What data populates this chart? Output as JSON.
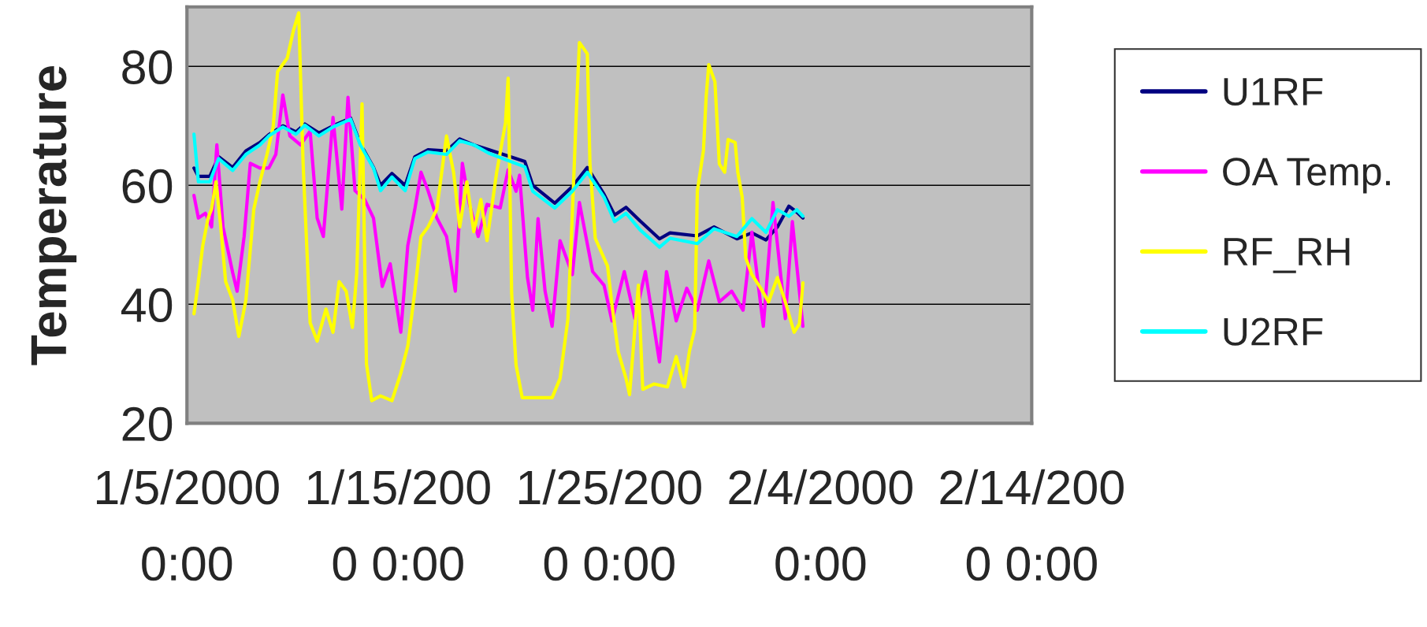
{
  "chart_data": {
    "type": "line",
    "ylabel": "Temperature",
    "xlim": [
      "2000-01-05",
      "2000-02-14"
    ],
    "xticks": [
      {
        "value": "2000-01-05",
        "label": "1/5/2000\n0:00"
      },
      {
        "value": "2000-01-15",
        "label": "1/15/200\n0 0:00"
      },
      {
        "value": "2000-01-25",
        "label": "1/25/200\n0 0:00"
      },
      {
        "value": "2000-02-04",
        "label": "2/4/2000\n0:00"
      },
      {
        "value": "2000-02-14",
        "label": "2/14/200\n0 0:00"
      }
    ],
    "ylim": [
      20,
      90
    ],
    "yticks": [
      20,
      40,
      60,
      80
    ],
    "grid": "y",
    "legend": "right",
    "marker": "none",
    "line_style": "solid",
    "series": [
      {
        "name": "U1RF",
        "color": "#000080",
        "x": [
          "2000-01-05T08:00",
          "2000-01-05T13:00",
          "2000-01-06T02:00",
          "2000-01-06T12:00",
          "2000-01-07T04:00",
          "2000-01-07T19:00",
          "2000-01-08T11:00",
          "2000-01-08T21:00",
          "2000-01-09T13:00",
          "2000-01-10T04:00",
          "2000-01-10T14:00",
          "2000-01-11T06:00",
          "2000-01-11T22:00",
          "2000-01-12T18:00",
          "2000-01-13T05:00",
          "2000-01-13T20:00",
          "2000-01-14T04:00",
          "2000-01-14T17:00",
          "2000-01-15T08:00",
          "2000-01-15T19:00",
          "2000-01-16T10:00",
          "2000-01-17T07:00",
          "2000-01-17T22:00",
          "2000-01-18T14:00",
          "2000-01-19T07:00",
          "2000-01-21T00:00",
          "2000-01-21T09:00",
          "2000-01-22T10:00",
          "2000-01-23T06:00",
          "2000-01-23T23:00",
          "2000-01-24T18:00",
          "2000-01-25T06:00",
          "2000-01-25T19:00",
          "2000-01-26T11:00",
          "2000-01-27T09:00",
          "2000-01-27T21:00",
          "2000-01-29T04:00",
          "2000-01-29T23:00",
          "2000-01-31T01:00",
          "2000-01-31T18:00",
          "2000-02-01T10:00",
          "2000-02-01T23:00",
          "2000-02-02T12:00",
          "2000-02-02T21:00",
          "2000-02-03T04:00"
        ],
        "values": [
          62.9,
          61.5,
          61.5,
          64.8,
          63,
          65.8,
          67.2,
          68.5,
          70,
          69,
          70.3,
          68.8,
          70,
          71.3,
          67,
          63,
          60,
          62,
          60,
          64.8,
          66,
          65.8,
          67.8,
          66.8,
          66,
          64,
          60,
          57,
          59.8,
          63,
          58.5,
          55,
          56.3,
          54,
          51,
          52,
          51.5,
          53,
          51,
          52,
          50.8,
          53,
          56.5,
          55.5,
          54.5
        ]
      },
      {
        "name": "OA Temp.",
        "color": "#ff00ff",
        "x": [
          "2000-01-05T08:00",
          "2000-01-05T13:00",
          "2000-01-05T21:00",
          "2000-01-06T04:00",
          "2000-01-06T10:00",
          "2000-01-06T17:00",
          "2000-01-07T04:00",
          "2000-01-07T09:00",
          "2000-01-07T17:00",
          "2000-01-08T00:00",
          "2000-01-08T11:00",
          "2000-01-08T21:00",
          "2000-01-09T05:00",
          "2000-01-09T13:00",
          "2000-01-09T21:00",
          "2000-01-10T09:00",
          "2000-01-10T20:00",
          "2000-01-11T04:00",
          "2000-01-11T11:00",
          "2000-01-11T22:00",
          "2000-01-12T08:00",
          "2000-01-12T15:00",
          "2000-01-12T23:00",
          "2000-01-13T10:00",
          "2000-01-13T20:00",
          "2000-01-14T06:00",
          "2000-01-14T15:00",
          "2000-01-15T03:00",
          "2000-01-15T11:00",
          "2000-01-15T19:00",
          "2000-01-16T02:00",
          "2000-01-16T10:00",
          "2000-01-16T20:00",
          "2000-01-17T07:00",
          "2000-01-17T17:00",
          "2000-01-18T01:00",
          "2000-01-18T09:00",
          "2000-01-18T19:00",
          "2000-01-19T05:00",
          "2000-01-19T20:00",
          "2000-01-20T05:00",
          "2000-01-20T14:00",
          "2000-01-20T18:00",
          "2000-01-21T03:00",
          "2000-01-21T09:00",
          "2000-01-21T15:00",
          "2000-01-21T23:00",
          "2000-01-22T07:00",
          "2000-01-22T16:00",
          "2000-01-23T06:00",
          "2000-01-23T14:00",
          "2000-01-24T05:00",
          "2000-01-24T18:00",
          "2000-01-25T03:00",
          "2000-01-25T17:00",
          "2000-01-26T05:00",
          "2000-01-26T17:00",
          "2000-01-27T09:00",
          "2000-01-27T17:00",
          "2000-01-28T04:00",
          "2000-01-28T16:00",
          "2000-01-29T04:00",
          "2000-01-29T17:00",
          "2000-01-30T05:00",
          "2000-01-30T19:00",
          "2000-01-31T08:00",
          "2000-01-31T18:00",
          "2000-02-01T07:00",
          "2000-02-01T18:00",
          "2000-02-02T08:00",
          "2000-02-02T16:00",
          "2000-02-03T04:00"
        ],
        "values": [
          58.3,
          54.5,
          55.3,
          53.0,
          66.8,
          53.0,
          45.3,
          42.2,
          51.4,
          63.7,
          62.9,
          62.9,
          65.2,
          75.2,
          68.3,
          66.8,
          69.1,
          54.5,
          51.4,
          71.4,
          56.0,
          74.8,
          59.1,
          57.6,
          54.5,
          43.0,
          46.8,
          35.3,
          49.9,
          56.0,
          62.2,
          59.1,
          54.5,
          51.4,
          42.2,
          63.7,
          56.8,
          51.4,
          56.8,
          56.2,
          62.6,
          59.0,
          61.7,
          44.5,
          39.0,
          54.4,
          42.2,
          36.3,
          50.7,
          45.0,
          57.1,
          45.5,
          43.2,
          37.2,
          45.5,
          37.6,
          45.5,
          30.3,
          45.5,
          37.2,
          42.7,
          39.0,
          47.3,
          40.4,
          42.2,
          39.0,
          52.1,
          36.3,
          57.1,
          37.6,
          53.9,
          36.3
        ]
      },
      {
        "name": "RF_RH",
        "color": "#ffff00",
        "x": [
          "2000-01-05T08:00",
          "2000-01-05T13:00",
          "2000-01-05T18:00",
          "2000-01-06T00:00",
          "2000-01-06T04:00",
          "2000-01-06T09:00",
          "2000-01-06T14:00",
          "2000-01-06T20:00",
          "2000-01-07T04:00",
          "2000-01-07T11:00",
          "2000-01-07T19:00",
          "2000-01-08T04:00",
          "2000-01-08T11:00",
          "2000-01-08T19:00",
          "2000-01-09T02:00",
          "2000-01-09T07:00",
          "2000-01-09T18:00",
          "2000-01-10T01:00",
          "2000-01-10T07:00",
          "2000-01-10T12:00",
          "2000-01-10T20:00",
          "2000-01-11T04:00",
          "2000-01-11T14:00",
          "2000-01-11T22:00",
          "2000-01-12T05:00",
          "2000-01-12T13:00",
          "2000-01-12T20:00",
          "2000-01-13T01:00",
          "2000-01-13T07:00",
          "2000-01-13T12:00",
          "2000-01-13T18:00",
          "2000-01-14T04:00",
          "2000-01-14T17:00",
          "2000-01-15T03:00",
          "2000-01-15T11:00",
          "2000-01-15T19:00",
          "2000-01-16T02:00",
          "2000-01-16T10:00",
          "2000-01-16T20:00",
          "2000-01-17T07:00",
          "2000-01-17T15:00",
          "2000-01-17T22:00",
          "2000-01-18T06:00",
          "2000-01-18T14:00",
          "2000-01-18T22:00",
          "2000-01-19T05:00",
          "2000-01-19T16:00",
          "2000-01-20T02:00",
          "2000-01-20T05:00",
          "2000-01-20T09:00",
          "2000-01-20T14:00",
          "2000-01-20T21:00",
          "2000-01-22T07:00",
          "2000-01-22T16:00",
          "2000-01-23T01:00",
          "2000-01-23T06:00",
          "2000-01-23T11:00",
          "2000-01-23T14:00",
          "2000-01-23T23:00",
          "2000-01-24T02:00",
          "2000-01-24T08:00",
          "2000-01-24T22:00",
          "2000-01-25T03:00",
          "2000-01-25T10:00",
          "2000-01-25T19:00",
          "2000-01-25T23:00",
          "2000-01-26T09:00",
          "2000-01-26T14:00",
          "2000-01-27T03:00",
          "2000-01-27T18:00",
          "2000-01-28T04:00",
          "2000-01-28T13:00",
          "2000-01-28T19:00",
          "2000-01-29T01:00",
          "2000-01-29T04:00",
          "2000-01-29T11:00",
          "2000-01-29T14:00",
          "2000-01-29T17:00",
          "2000-01-30T00:00",
          "2000-01-30T05:00",
          "2000-01-30T11:00",
          "2000-01-30T15:00",
          "2000-01-30T23:00",
          "2000-01-31T02:00",
          "2000-01-31T07:00",
          "2000-01-31T11:00",
          "2000-01-31T18:00",
          "2000-02-01T04:00",
          "2000-02-01T13:00",
          "2000-02-01T23:00",
          "2000-02-02T08:00",
          "2000-02-02T18:00",
          "2000-02-03T00:00",
          "2000-02-03T04:00"
        ],
        "values": [
          38.4,
          43.8,
          49.9,
          54.5,
          56.0,
          60.6,
          53.7,
          43.8,
          40.7,
          34.6,
          40.7,
          56.0,
          60.6,
          65.2,
          69.8,
          79.1,
          81.4,
          86.0,
          89.0,
          63.7,
          36.9,
          33.8,
          39.2,
          35.3,
          43.8,
          42.2,
          36.1,
          45.3,
          73.7,
          30.0,
          23.8,
          24.6,
          23.8,
          28.4,
          33.0,
          42.2,
          51.4,
          53.0,
          56.0,
          68.3,
          62.2,
          53.0,
          60.6,
          52.2,
          57.6,
          50.7,
          62.2,
          70.5,
          78.0,
          41.8,
          29.8,
          24.3,
          24.3,
          27.5,
          37.6,
          55.3,
          74.1,
          84.0,
          82.1,
          63.6,
          51.1,
          46.4,
          39.9,
          32.1,
          27.5,
          24.8,
          43.2,
          25.7,
          26.6,
          26.1,
          31.2,
          26.1,
          32.1,
          35.8,
          59.0,
          65.9,
          74.8,
          80.3,
          77.4,
          63.6,
          62.2,
          67.7,
          67.2,
          62.2,
          58.0,
          47.8,
          45.0,
          42.7,
          40.4,
          44.5,
          40.4,
          35.3,
          36.7,
          43.6
        ]
      },
      {
        "name": "U2RF",
        "color": "#00ffff",
        "x": [
          "2000-01-05T08:00",
          "2000-01-05T13:00",
          "2000-01-06T02:00",
          "2000-01-06T12:00",
          "2000-01-07T04:00",
          "2000-01-07T19:00",
          "2000-01-08T11:00",
          "2000-01-08T21:00",
          "2000-01-09T13:00",
          "2000-01-10T04:00",
          "2000-01-10T14:00",
          "2000-01-11T06:00",
          "2000-01-11T22:00",
          "2000-01-12T18:00",
          "2000-01-13T05:00",
          "2000-01-13T20:00",
          "2000-01-14T04:00",
          "2000-01-14T17:00",
          "2000-01-15T08:00",
          "2000-01-15T19:00",
          "2000-01-16T10:00",
          "2000-01-17T07:00",
          "2000-01-17T22:00",
          "2000-01-18T14:00",
          "2000-01-19T07:00",
          "2000-01-21T00:00",
          "2000-01-21T09:00",
          "2000-01-22T10:00",
          "2000-01-23T06:00",
          "2000-01-23T23:00",
          "2000-01-24T18:00",
          "2000-01-25T06:00",
          "2000-01-25T19:00",
          "2000-01-26T11:00",
          "2000-01-27T09:00",
          "2000-01-27T21:00",
          "2000-01-29T04:00",
          "2000-01-29T23:00",
          "2000-01-31T01:00",
          "2000-01-31T18:00",
          "2000-02-01T10:00",
          "2000-02-01T23:00",
          "2000-02-02T12:00",
          "2000-02-02T21:00",
          "2000-02-03T04:00"
        ],
        "values": [
          68.6,
          60.6,
          60.6,
          64.5,
          62.5,
          65.2,
          66.8,
          68.3,
          69.8,
          68.6,
          70.1,
          68.3,
          69.8,
          71.1,
          66.8,
          62.9,
          59.1,
          61.4,
          59.1,
          64.5,
          65.6,
          65.2,
          67.5,
          66.8,
          65.4,
          63.1,
          59.0,
          56.2,
          59.0,
          62.2,
          58.0,
          53.9,
          55.3,
          52.5,
          49.6,
          51.1,
          50.2,
          52.7,
          51.4,
          54.4,
          52.1,
          55.9,
          54.8,
          55.9,
          54.8
        ]
      }
    ]
  }
}
